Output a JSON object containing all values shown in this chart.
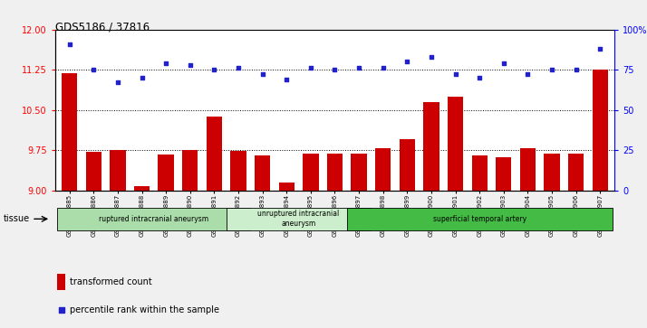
{
  "title": "GDS5186 / 37816",
  "samples": [
    "GSM1306885",
    "GSM1306886",
    "GSM1306887",
    "GSM1306888",
    "GSM1306889",
    "GSM1306890",
    "GSM1306891",
    "GSM1306892",
    "GSM1306893",
    "GSM1306894",
    "GSM1306895",
    "GSM1306896",
    "GSM1306897",
    "GSM1306898",
    "GSM1306899",
    "GSM1306900",
    "GSM1306901",
    "GSM1306902",
    "GSM1306903",
    "GSM1306904",
    "GSM1306905",
    "GSM1306906",
    "GSM1306907"
  ],
  "transformed_count": [
    11.18,
    9.72,
    9.75,
    9.07,
    9.67,
    9.75,
    10.38,
    9.73,
    9.65,
    9.15,
    9.68,
    9.68,
    9.68,
    9.78,
    9.95,
    10.64,
    10.75,
    9.65,
    9.62,
    9.78,
    9.68,
    9.68,
    11.25
  ],
  "percentile_rank": [
    91,
    75,
    67,
    70,
    79,
    78,
    75,
    76,
    72,
    69,
    76,
    75,
    76,
    76,
    80,
    83,
    72,
    70,
    79,
    72,
    75,
    75,
    88
  ],
  "ylim_left": [
    9,
    12
  ],
  "ylim_right": [
    0,
    100
  ],
  "yticks_left": [
    9,
    9.75,
    10.5,
    11.25,
    12
  ],
  "yticks_right": [
    0,
    25,
    50,
    75,
    100
  ],
  "ytick_labels_right": [
    "0",
    "25",
    "50",
    "75",
    "100%"
  ],
  "hlines": [
    9.75,
    10.5,
    11.25
  ],
  "bar_color": "#cc0000",
  "dot_color": "#2222cc",
  "bar_bottom": 9,
  "groups": [
    {
      "label": "ruptured intracranial aneurysm",
      "start": 0,
      "end": 7,
      "color": "#aaddaa"
    },
    {
      "label": "unruptured intracranial\naneurysm",
      "start": 7,
      "end": 12,
      "color": "#cceecc"
    },
    {
      "label": "superficial temporal artery",
      "start": 12,
      "end": 22,
      "color": "#44bb44"
    }
  ],
  "tissue_label": "tissue",
  "legend_bar_label": "transformed count",
  "legend_dot_label": "percentile rank within the sample",
  "fig_bg_color": "#f0f0f0",
  "plot_bg_color": "#ffffff"
}
